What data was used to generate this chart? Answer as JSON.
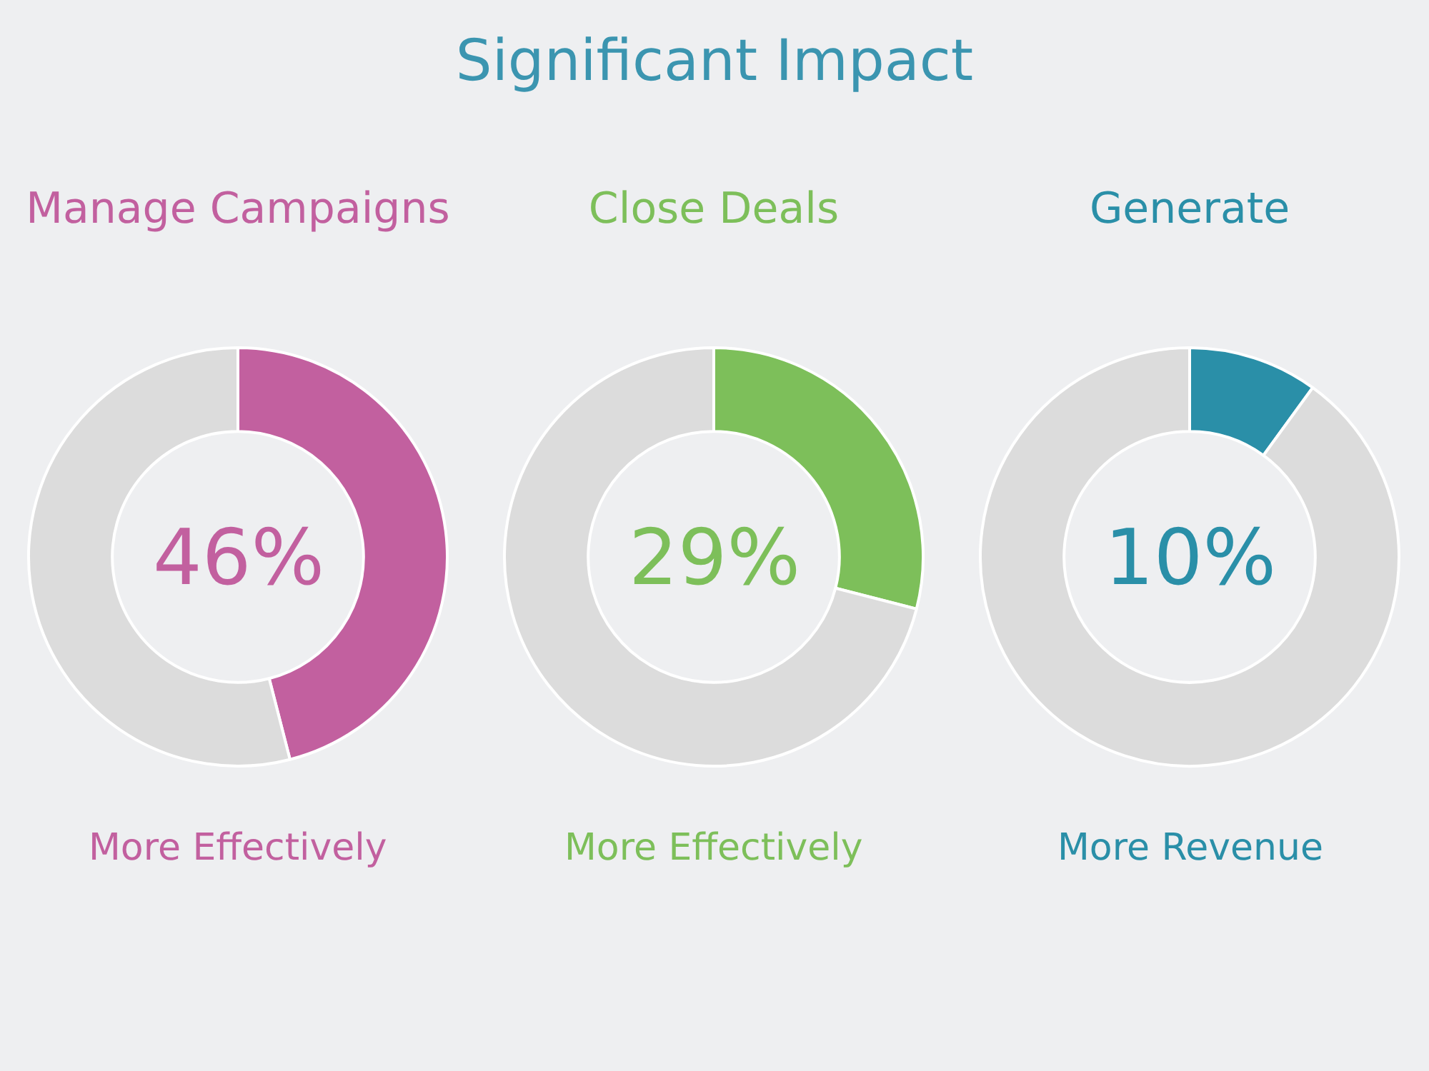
{
  "chart_data": [
    {
      "type": "other",
      "title": "Significant Impact"
    },
    {
      "type": "donut",
      "title": "Manage Campaigns",
      "categories": [
        null,
        null
      ],
      "values": [
        46,
        54
      ],
      "colors": [
        "#c2609f",
        "#dcdcdc"
      ],
      "annotations": [
        "46%",
        "More Effectively"
      ]
    },
    {
      "type": "donut",
      "title": "Close Deals",
      "categories": [
        null,
        null
      ],
      "values": [
        29,
        71
      ],
      "colors": [
        "#7dbf5a",
        "#dcdcdc"
      ],
      "annotations": [
        "29%",
        "More Effectively"
      ]
    },
    {
      "type": "donut",
      "title": "Generate",
      "categories": [
        null,
        null
      ],
      "values": [
        10,
        90
      ],
      "colors": [
        "#2a8fa8",
        "#dcdcdc"
      ],
      "annotations": [
        "10%",
        "More Revenue"
      ]
    }
  ]
}
